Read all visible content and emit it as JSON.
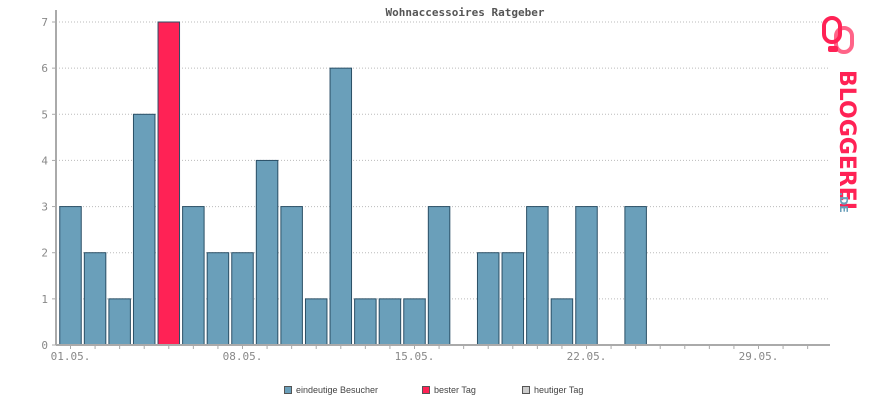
{
  "chart_data": {
    "type": "bar",
    "title": "Wohnaccessoires Ratgeber",
    "xlabel": "",
    "ylabel": "",
    "ylim": [
      0,
      7
    ],
    "y_ticks": [
      "0",
      "1",
      "2",
      "3",
      "4",
      "5",
      "6",
      "7"
    ],
    "x_tick_labels": [
      "01.05.",
      "08.05.",
      "15.05.",
      "22.05.",
      "29.05."
    ],
    "x_tick_days": [
      1,
      8,
      15,
      22,
      29
    ],
    "days": [
      1,
      2,
      3,
      4,
      5,
      6,
      7,
      8,
      9,
      10,
      11,
      12,
      13,
      14,
      15,
      16,
      17,
      18,
      19,
      20,
      21,
      22,
      23,
      24,
      25,
      26,
      27,
      28,
      29,
      30,
      31
    ],
    "values": [
      3,
      2,
      1,
      5,
      7,
      3,
      2,
      2,
      4,
      3,
      1,
      6,
      1,
      1,
      1,
      3,
      0,
      2,
      2,
      3,
      1,
      3,
      0,
      3,
      0,
      0,
      0,
      0,
      0,
      0,
      0
    ],
    "best_day": 5,
    "grid": true,
    "legend_position": "bottom"
  },
  "legend": {
    "items": [
      {
        "label": "eindeutige Besucher",
        "color": "#6a9fba"
      },
      {
        "label": "bester Tag",
        "color": "#ff2255"
      },
      {
        "label": "heutiger Tag",
        "color": "#cccccc"
      }
    ]
  },
  "colors": {
    "bar": "#6a9fba",
    "bar_border": "#2a4f66",
    "best": "#ff2255",
    "axis": "#aaaaaa",
    "grid": "#bbbbbb"
  },
  "logo": {
    "text": "BLOGGEREI",
    "suffix": ".DE"
  }
}
